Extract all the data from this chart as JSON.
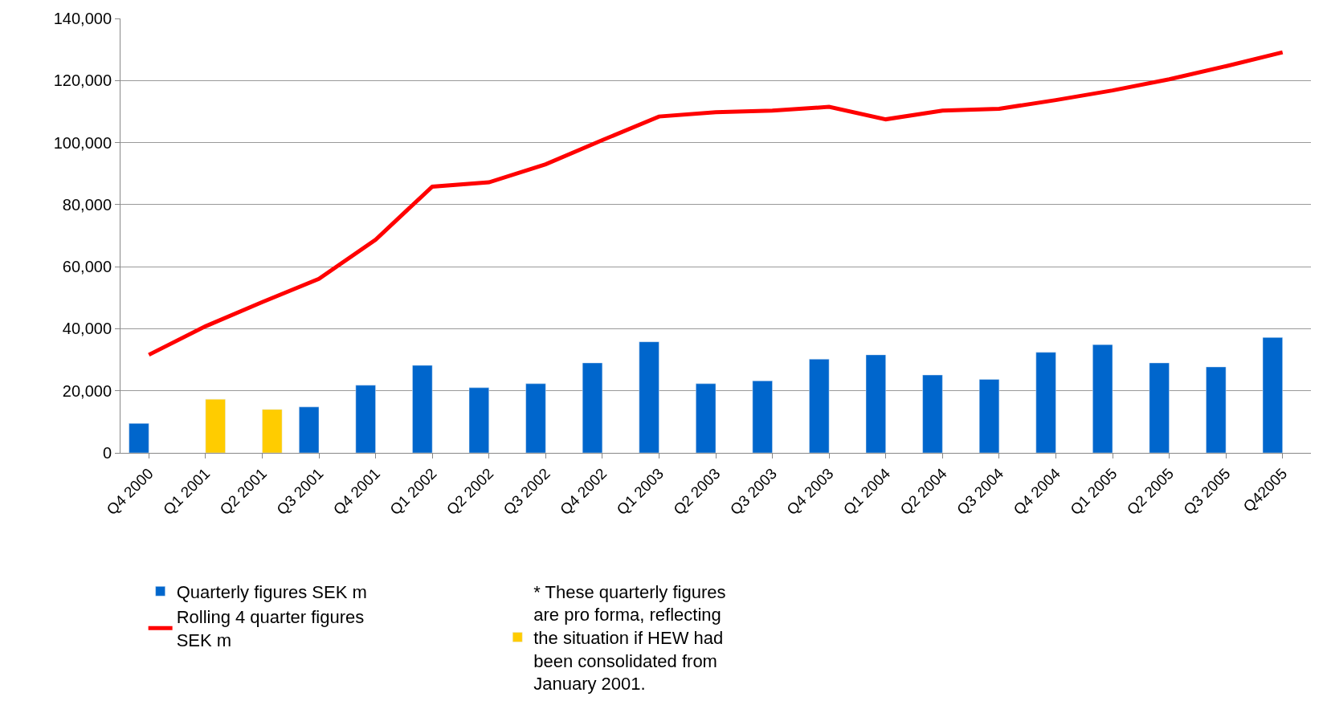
{
  "chart_data": {
    "type": "bar",
    "categories": [
      "Q4 2000",
      "Q1 2001",
      "Q2 2001",
      "Q3 2001",
      "Q4 2001",
      "Q1 2002",
      "Q2 2002",
      "Q3 2002",
      "Q4 2002",
      "Q1 2003",
      "Q2 2003",
      "Q3 2003",
      "Q4 2003",
      "Q1 2004",
      "Q2 2004",
      "Q3 2004",
      "Q4 2004",
      "Q1 2005",
      "Q2 2005",
      "Q3 2005",
      "Q42005"
    ],
    "series": [
      {
        "name": "Quarterly figures SEK m",
        "color": "#0066cc",
        "values": [
          9500,
          null,
          null,
          14800,
          21800,
          28200,
          21000,
          22300,
          29000,
          35800,
          22300,
          23200,
          30200,
          31600,
          25100,
          23700,
          32400,
          34900,
          29000,
          27700,
          37200
        ]
      },
      {
        "name": "* These quarterly figures are pro forma, reflecting the situation if HEW had been consolidated from January 2001.",
        "color": "#ffcc00",
        "values": [
          null,
          17300,
          14000,
          null,
          null,
          null,
          null,
          null,
          null,
          null,
          null,
          null,
          null,
          null,
          null,
          null,
          null,
          null,
          null,
          null,
          null
        ]
      },
      {
        "name": "Rolling 4 quarter figures SEK m",
        "color": "#ff0000",
        "type": "line",
        "values": [
          31600,
          40800,
          48600,
          56100,
          68700,
          85800,
          87200,
          93000,
          100800,
          108400,
          109800,
          110300,
          111500,
          107500,
          110300,
          110900,
          113700,
          116800,
          120400,
          124600,
          129100
        ]
      }
    ],
    "ylim": [
      0,
      140000
    ],
    "yticks": [
      0,
      {
        "value": 20000,
        "label": "20,000"
      },
      {
        "value": 40000,
        "label": "40,000"
      },
      {
        "value": 60000,
        "label": "60,000"
      },
      {
        "value": 80000,
        "label": "80,000"
      },
      {
        "value": 100000,
        "label": "100,000"
      },
      {
        "value": 120000,
        "label": "120,000"
      },
      {
        "value": 140000,
        "label": "140,000"
      }
    ],
    "grid": "y",
    "legend": "bottom",
    "marker": "none",
    "line_style": "solid"
  }
}
